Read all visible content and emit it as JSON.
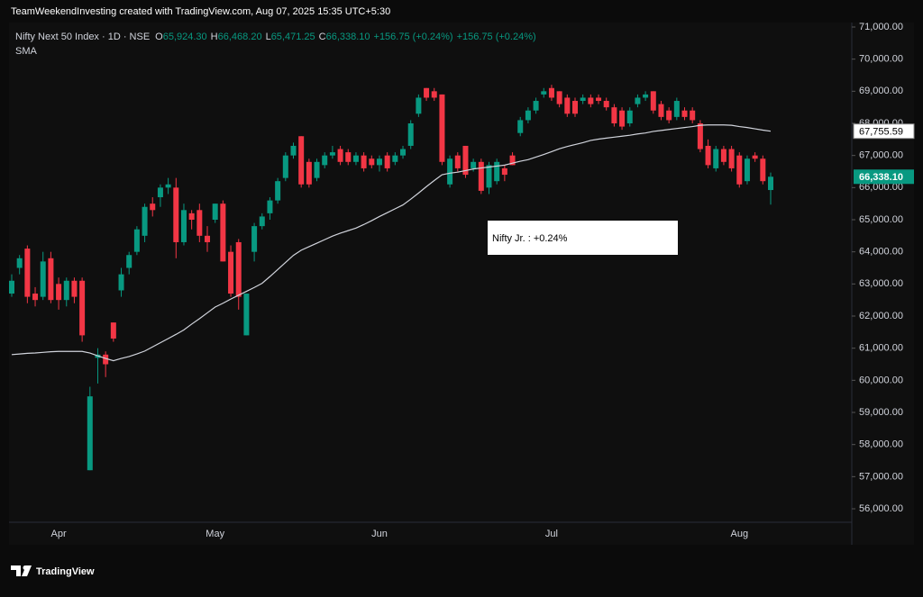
{
  "header": "TeamWeekendInvesting created with TradingView.com, Aug 07, 2025 15:35 UTC+5:30",
  "chart_data": {
    "type": "candlestick",
    "title": "Nifty Next 50 Index · 1D · NSE",
    "legend_values": [
      {
        "label": "O",
        "value": "65,924.30"
      },
      {
        "label": "H",
        "value": "66,468.20"
      },
      {
        "label": "L",
        "value": "65,471.25"
      },
      {
        "label": "C",
        "value": "66,338.10"
      }
    ],
    "changes": [
      "+156.75 (+0.24%)",
      "+156.75 (+0.24%)"
    ],
    "up_color": "#089981",
    "down_color": "#f23645",
    "categories": [
      null,
      null,
      null,
      null,
      null,
      null,
      "Apr",
      null,
      null,
      null,
      null,
      null,
      null,
      null,
      null,
      null,
      null,
      null,
      null,
      null,
      null,
      null,
      null,
      null,
      null,
      null,
      "May",
      null,
      null,
      null,
      null,
      null,
      null,
      null,
      null,
      null,
      null,
      null,
      null,
      null,
      null,
      null,
      null,
      null,
      null,
      null,
      null,
      "Jun",
      null,
      null,
      null,
      null,
      null,
      null,
      null,
      null,
      null,
      null,
      null,
      null,
      null,
      null,
      null,
      null,
      null,
      null,
      null,
      null,
      null,
      "Jul",
      null,
      null,
      null,
      null,
      null,
      null,
      null,
      null,
      null,
      null,
      null,
      null,
      null,
      null,
      null,
      null,
      null,
      null,
      null,
      null,
      null,
      null,
      null,
      "Aug",
      null,
      null,
      null,
      null
    ],
    "ohlc": [
      [
        62700,
        63300,
        62600,
        63100
      ],
      [
        63500,
        63900,
        63300,
        63800
      ],
      [
        64100,
        64200,
        62400,
        62600
      ],
      [
        62700,
        62900,
        62300,
        62500
      ],
      [
        62600,
        64000,
        62500,
        63700
      ],
      [
        63800,
        64000,
        62400,
        62500
      ],
      [
        63000,
        63200,
        62200,
        62500
      ],
      [
        62500,
        63200,
        62300,
        63100
      ],
      [
        63100,
        63200,
        62400,
        62600
      ],
      [
        63100,
        63200,
        61200,
        61400
      ],
      [
        57200,
        59800,
        57200,
        59500
      ],
      [
        60700,
        61000,
        59900,
        60800
      ],
      [
        60800,
        60900,
        60100,
        60500
      ],
      [
        61800,
        61800,
        61200,
        61300
      ],
      [
        62800,
        63500,
        62600,
        63300
      ],
      [
        63500,
        64000,
        63300,
        63900
      ],
      [
        64000,
        64800,
        63900,
        64700
      ],
      [
        64500,
        65500,
        64300,
        65400
      ],
      [
        65500,
        65700,
        65100,
        65300
      ],
      [
        65700,
        66100,
        65400,
        66000
      ],
      [
        66000,
        66300,
        65800,
        66100
      ],
      [
        66000,
        66300,
        63800,
        64300
      ],
      [
        64300,
        65500,
        64200,
        65300
      ],
      [
        65200,
        65300,
        64700,
        65000
      ],
      [
        65300,
        65500,
        64300,
        64500
      ],
      [
        64500,
        64800,
        64000,
        64300
      ],
      [
        65000,
        65500,
        64900,
        65500
      ],
      [
        65500,
        65600,
        63700,
        63700
      ],
      [
        64000,
        64200,
        62600,
        62700
      ],
      [
        64300,
        64400,
        62200,
        62600
      ],
      [
        61400,
        62700,
        61400,
        62700
      ],
      [
        64000,
        64900,
        63700,
        64800
      ],
      [
        64800,
        65200,
        64700,
        65100
      ],
      [
        65200,
        65700,
        65000,
        65600
      ],
      [
        65600,
        66300,
        65500,
        66200
      ],
      [
        66300,
        67100,
        66200,
        67000
      ],
      [
        67000,
        67400,
        66900,
        67300
      ],
      [
        67600,
        67600,
        66000,
        66100
      ],
      [
        66800,
        66900,
        66000,
        66100
      ],
      [
        66300,
        66900,
        66200,
        66800
      ],
      [
        66700,
        67100,
        66600,
        67000
      ],
      [
        67000,
        67300,
        66900,
        67100
      ],
      [
        67200,
        67300,
        66700,
        66800
      ],
      [
        67100,
        67200,
        66700,
        66800
      ],
      [
        66800,
        67100,
        66700,
        67000
      ],
      [
        67000,
        67100,
        66500,
        66600
      ],
      [
        66900,
        67000,
        66600,
        66700
      ],
      [
        66700,
        67000,
        66500,
        66900
      ],
      [
        67000,
        67100,
        66500,
        66600
      ],
      [
        66800,
        67100,
        66700,
        67000
      ],
      [
        67000,
        67300,
        66900,
        67200
      ],
      [
        67300,
        68100,
        67200,
        68000
      ],
      [
        68300,
        68900,
        68200,
        68800
      ],
      [
        69100,
        69100,
        68700,
        68800
      ],
      [
        69000,
        69100,
        68700,
        68800
      ],
      [
        68900,
        68900,
        66700,
        66800
      ],
      [
        66100,
        67000,
        66000,
        66900
      ],
      [
        67000,
        67100,
        66500,
        66600
      ],
      [
        67300,
        67300,
        66300,
        66400
      ],
      [
        66600,
        66900,
        66500,
        66800
      ],
      [
        66800,
        66900,
        65800,
        65900
      ],
      [
        66000,
        66800,
        65800,
        66700
      ],
      [
        66200,
        66900,
        66100,
        66800
      ],
      [
        66600,
        66700,
        66200,
        66400
      ],
      [
        67000,
        67100,
        66700,
        66700
      ],
      [
        67700,
        68200,
        67600,
        68100
      ],
      [
        68100,
        68500,
        68000,
        68400
      ],
      [
        68400,
        68800,
        68300,
        68700
      ],
      [
        68900,
        69100,
        68800,
        69000
      ],
      [
        69100,
        69200,
        68700,
        68800
      ],
      [
        69000,
        69000,
        68500,
        68600
      ],
      [
        68800,
        68900,
        68200,
        68300
      ],
      [
        68700,
        68800,
        68200,
        68300
      ],
      [
        68700,
        68900,
        68600,
        68800
      ],
      [
        68800,
        68900,
        68500,
        68600
      ],
      [
        68800,
        68900,
        68600,
        68700
      ],
      [
        68700,
        68800,
        68400,
        68500
      ],
      [
        68500,
        68600,
        67900,
        68000
      ],
      [
        68400,
        68500,
        67800,
        67900
      ],
      [
        68000,
        68500,
        67900,
        68400
      ],
      [
        68600,
        68900,
        68500,
        68800
      ],
      [
        68800,
        69000,
        68700,
        68900
      ],
      [
        69000,
        69000,
        68300,
        68400
      ],
      [
        68600,
        68700,
        68100,
        68200
      ],
      [
        68400,
        68500,
        68000,
        68100
      ],
      [
        68200,
        68800,
        68100,
        68700
      ],
      [
        68400,
        68500,
        68100,
        68200
      ],
      [
        68400,
        68500,
        68000,
        68100
      ],
      [
        68000,
        68100,
        67100,
        67200
      ],
      [
        67300,
        67500,
        66600,
        66700
      ],
      [
        66600,
        67300,
        66500,
        67200
      ],
      [
        67200,
        67300,
        66700,
        66800
      ],
      [
        67200,
        67300,
        66500,
        66600
      ],
      [
        67000,
        67100,
        66000,
        66100
      ],
      [
        66200,
        67000,
        66100,
        66900
      ],
      [
        67000,
        67100,
        66800,
        66900
      ],
      [
        66900,
        67000,
        66100,
        66200
      ],
      [
        65924.3,
        66468.2,
        65471.25,
        66338.1
      ]
    ],
    "sma": {
      "name": "SMA",
      "color": "#d1d4dc",
      "value_label": "67,755.59",
      "values": [
        60800,
        60820,
        60840,
        60850,
        60870,
        60890,
        60900,
        60900,
        60900,
        60900,
        60850,
        60760,
        60680,
        60610,
        60680,
        60740,
        60820,
        60910,
        61040,
        61170,
        61300,
        61430,
        61570,
        61750,
        61920,
        62100,
        62280,
        62400,
        62530,
        62650,
        62770,
        62890,
        63020,
        63230,
        63450,
        63670,
        63890,
        64050,
        64160,
        64270,
        64380,
        64490,
        64580,
        64660,
        64740,
        64850,
        64970,
        65100,
        65220,
        65340,
        65460,
        65640,
        65830,
        66030,
        66220,
        66400,
        66450,
        66480,
        66530,
        66580,
        66610,
        66640,
        66670,
        66700,
        66760,
        66820,
        66870,
        66950,
        67030,
        67120,
        67210,
        67280,
        67340,
        67400,
        67470,
        67510,
        67540,
        67570,
        67600,
        67630,
        67670,
        67700,
        67750,
        67780,
        67810,
        67840,
        67870,
        67900,
        67940,
        67950,
        67950,
        67950,
        67940,
        67900,
        67870,
        67830,
        67790,
        67755.59
      ]
    },
    "close_label": "66,338.10",
    "annotation": "Nifty Jr. : +0.24%",
    "ylim": [
      55580,
      71140
    ],
    "yticks": [
      {
        "value": 56000,
        "label": "56,000.00"
      },
      {
        "value": 57000,
        "label": "57,000.00"
      },
      {
        "value": 58000,
        "label": "58,000.00"
      },
      {
        "value": 59000,
        "label": "59,000.00"
      },
      {
        "value": 60000,
        "label": "60,000.00"
      },
      {
        "value": 61000,
        "label": "61,000.00"
      },
      {
        "value": 62000,
        "label": "62,000.00"
      },
      {
        "value": 63000,
        "label": "63,000.00"
      },
      {
        "value": 64000,
        "label": "64,000.00"
      },
      {
        "value": 65000,
        "label": "65,000.00"
      },
      {
        "value": 66000,
        "label": "66,000.00"
      },
      {
        "value": 67000,
        "label": "67,000.00"
      },
      {
        "value": 68000,
        "label": "68,000.00"
      },
      {
        "value": 69000,
        "label": "69,000.00"
      },
      {
        "value": 70000,
        "label": "70,000.00"
      },
      {
        "value": 71000,
        "label": "71,000.00"
      }
    ]
  },
  "brand": "TradingView"
}
